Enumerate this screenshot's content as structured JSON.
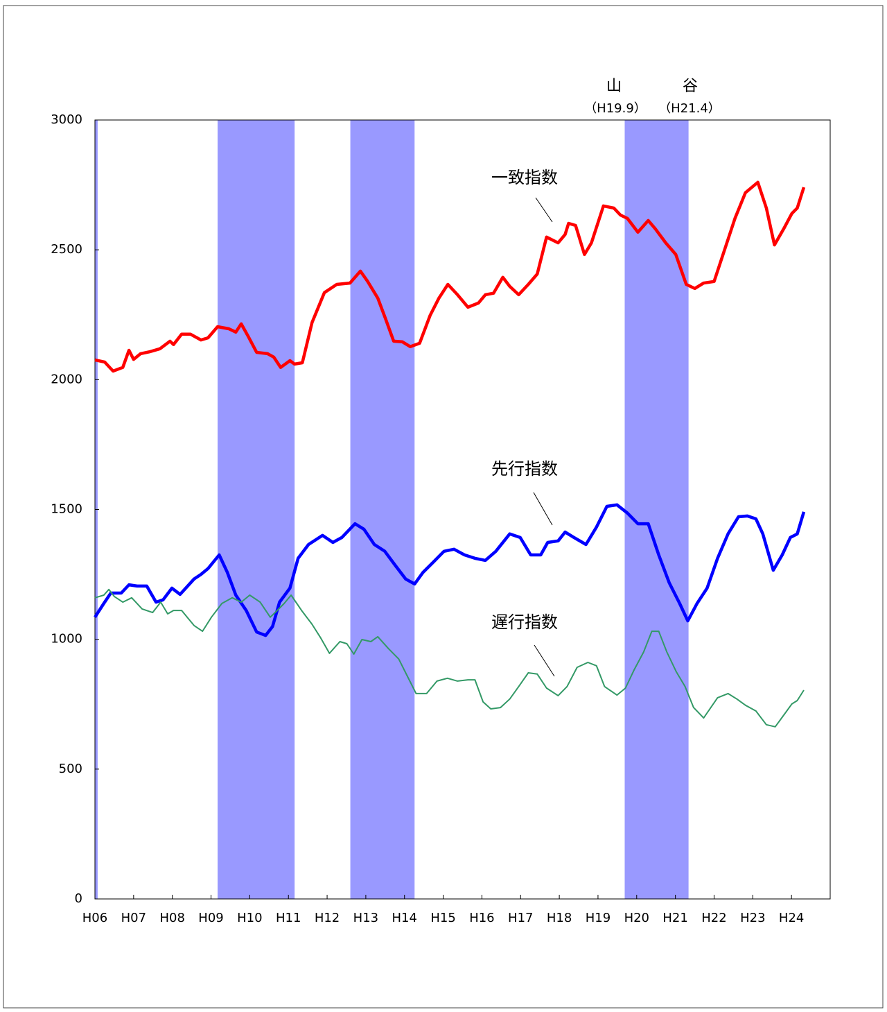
{
  "chart_data": {
    "type": "line",
    "xlim": [
      6,
      25
    ],
    "xticks": [
      {
        "value": 6,
        "label": "H06"
      },
      {
        "value": 7,
        "label": "H07"
      },
      {
        "value": 8,
        "label": "H08"
      },
      {
        "value": 9,
        "label": "H09"
      },
      {
        "value": 10,
        "label": "H10"
      },
      {
        "value": 11,
        "label": "H11"
      },
      {
        "value": 12,
        "label": "H12"
      },
      {
        "value": 13,
        "label": "H13"
      },
      {
        "value": 14,
        "label": "H14"
      },
      {
        "value": 15,
        "label": "H15"
      },
      {
        "value": 16,
        "label": "H16"
      },
      {
        "value": 17,
        "label": "H17"
      },
      {
        "value": 18,
        "label": "H18"
      },
      {
        "value": 19,
        "label": "H19"
      },
      {
        "value": 20,
        "label": "H20"
      },
      {
        "value": 21,
        "label": "H21"
      },
      {
        "value": 22,
        "label": "H22"
      },
      {
        "value": 23,
        "label": "H23"
      },
      {
        "value": 24,
        "label": "H24"
      }
    ],
    "ylim": [
      0,
      3000
    ],
    "yticks": [
      0,
      500,
      1000,
      1500,
      2000,
      2500,
      3000
    ],
    "shaded_periods": [
      [
        6.0,
        6.07
      ],
      [
        9.17,
        11.16
      ],
      [
        12.6,
        14.26
      ],
      [
        19.69,
        21.34
      ]
    ],
    "shade_color": "#9999ff",
    "annotations": [
      "山",
      "谷",
      "（H19.9）",
      "（H21.4）"
    ],
    "series": [
      {
        "name": "一致指数",
        "color": "#ff0000",
        "x": [
          6.0,
          6.25,
          6.47,
          6.72,
          6.88,
          7.0,
          7.18,
          7.43,
          7.68,
          7.94,
          8.03,
          8.24,
          8.47,
          8.74,
          8.92,
          9.17,
          9.46,
          9.64,
          9.78,
          9.96,
          10.18,
          10.46,
          10.62,
          10.8,
          11.04,
          11.16,
          11.36,
          11.61,
          11.93,
          12.25,
          12.59,
          12.86,
          13.04,
          13.31,
          13.51,
          13.72,
          13.94,
          14.15,
          14.39,
          14.66,
          14.89,
          15.12,
          15.37,
          15.64,
          15.91,
          16.09,
          16.3,
          16.54,
          16.72,
          16.95,
          17.2,
          17.43,
          17.67,
          17.97,
          18.15,
          18.24,
          18.42,
          18.65,
          18.83,
          19.14,
          19.41,
          19.58,
          19.76,
          20.03,
          20.3,
          20.48,
          20.75,
          21.01,
          21.28,
          21.5,
          21.73,
          22.0,
          22.27,
          22.54,
          22.81,
          23.13,
          23.35,
          23.56,
          23.8,
          24.01,
          24.15,
          24.32
        ],
        "values": [
          2076,
          2068,
          2033,
          2047,
          2113,
          2078,
          2100,
          2108,
          2119,
          2148,
          2135,
          2175,
          2175,
          2153,
          2161,
          2204,
          2196,
          2183,
          2215,
          2167,
          2105,
          2100,
          2087,
          2047,
          2073,
          2060,
          2065,
          2220,
          2335,
          2367,
          2372,
          2418,
          2380,
          2314,
          2234,
          2148,
          2146,
          2127,
          2140,
          2247,
          2314,
          2367,
          2327,
          2279,
          2295,
          2327,
          2333,
          2394,
          2359,
          2327,
          2367,
          2407,
          2549,
          2527,
          2559,
          2602,
          2594,
          2482,
          2527,
          2669,
          2661,
          2634,
          2621,
          2568,
          2613,
          2581,
          2527,
          2482,
          2367,
          2351,
          2372,
          2378,
          2500,
          2621,
          2720,
          2760,
          2661,
          2519,
          2581,
          2640,
          2661,
          2741
        ]
      },
      {
        "name": "先行指数",
        "color": "#0000ff",
        "x": [
          6.0,
          6.23,
          6.41,
          6.68,
          6.88,
          7.09,
          7.34,
          7.58,
          7.76,
          7.99,
          8.2,
          8.56,
          8.74,
          8.92,
          9.21,
          9.42,
          9.64,
          9.91,
          10.18,
          10.41,
          10.59,
          10.77,
          11.04,
          11.25,
          11.52,
          11.88,
          12.15,
          12.38,
          12.72,
          12.95,
          13.22,
          13.49,
          13.76,
          14.03,
          14.26,
          14.48,
          14.75,
          15.02,
          15.28,
          15.55,
          15.82,
          16.09,
          16.36,
          16.72,
          16.99,
          17.26,
          17.52,
          17.7,
          17.97,
          18.15,
          18.38,
          18.69,
          18.96,
          19.23,
          19.49,
          19.76,
          20.03,
          20.3,
          20.57,
          20.84,
          21.11,
          21.32,
          21.56,
          21.82,
          22.09,
          22.36,
          22.63,
          22.86,
          23.08,
          23.26,
          23.53,
          23.76,
          23.97,
          24.15,
          24.32
        ],
        "values": [
          1085,
          1138,
          1178,
          1178,
          1210,
          1205,
          1205,
          1143,
          1152,
          1197,
          1173,
          1232,
          1250,
          1272,
          1325,
          1258,
          1170,
          1111,
          1028,
          1015,
          1049,
          1143,
          1197,
          1312,
          1365,
          1400,
          1373,
          1392,
          1445,
          1424,
          1365,
          1339,
          1285,
          1232,
          1213,
          1258,
          1298,
          1339,
          1347,
          1325,
          1312,
          1304,
          1339,
          1406,
          1392,
          1325,
          1325,
          1373,
          1379,
          1413,
          1392,
          1365,
          1432,
          1512,
          1518,
          1486,
          1445,
          1445,
          1325,
          1218,
          1138,
          1071,
          1138,
          1197,
          1312,
          1406,
          1472,
          1475,
          1464,
          1406,
          1266,
          1325,
          1392,
          1406,
          1491
        ]
      },
      {
        "name": "遅行指数",
        "color": "#339966",
        "x": [
          6.0,
          6.23,
          6.36,
          6.5,
          6.72,
          6.95,
          7.22,
          7.49,
          7.7,
          7.88,
          8.03,
          8.24,
          8.56,
          8.78,
          9.01,
          9.28,
          9.55,
          9.78,
          10.0,
          10.27,
          10.53,
          10.71,
          10.89,
          11.07,
          11.34,
          11.61,
          11.84,
          12.06,
          12.33,
          12.51,
          12.69,
          12.9,
          13.13,
          13.31,
          13.58,
          13.85,
          14.03,
          14.3,
          14.57,
          14.84,
          15.11,
          15.37,
          15.64,
          15.82,
          16.03,
          16.23,
          16.48,
          16.72,
          16.95,
          17.2,
          17.43,
          17.67,
          17.97,
          18.2,
          18.46,
          18.74,
          18.96,
          19.17,
          19.49,
          19.71,
          19.94,
          20.18,
          20.39,
          20.57,
          20.78,
          21.02,
          21.25,
          21.47,
          21.73,
          22.09,
          22.36,
          22.59,
          22.81,
          23.08,
          23.35,
          23.58,
          23.8,
          24.01,
          24.15,
          24.32
        ],
        "values": [
          1160,
          1170,
          1192,
          1165,
          1143,
          1160,
          1117,
          1103,
          1143,
          1098,
          1111,
          1111,
          1053,
          1031,
          1085,
          1138,
          1160,
          1143,
          1170,
          1143,
          1085,
          1111,
          1138,
          1170,
          1111,
          1058,
          1004,
          946,
          991,
          983,
          943,
          999,
          991,
          1010,
          965,
          924,
          871,
          791,
          791,
          839,
          850,
          839,
          844,
          844,
          759,
          732,
          737,
          770,
          818,
          871,
          866,
          812,
          783,
          818,
          892,
          911,
          898,
          818,
          785,
          812,
          884,
          951,
          1031,
          1031,
          951,
          876,
          818,
          737,
          697,
          775,
          791,
          770,
          746,
          724,
          671,
          663,
          708,
          751,
          764,
          804
        ]
      }
    ]
  }
}
